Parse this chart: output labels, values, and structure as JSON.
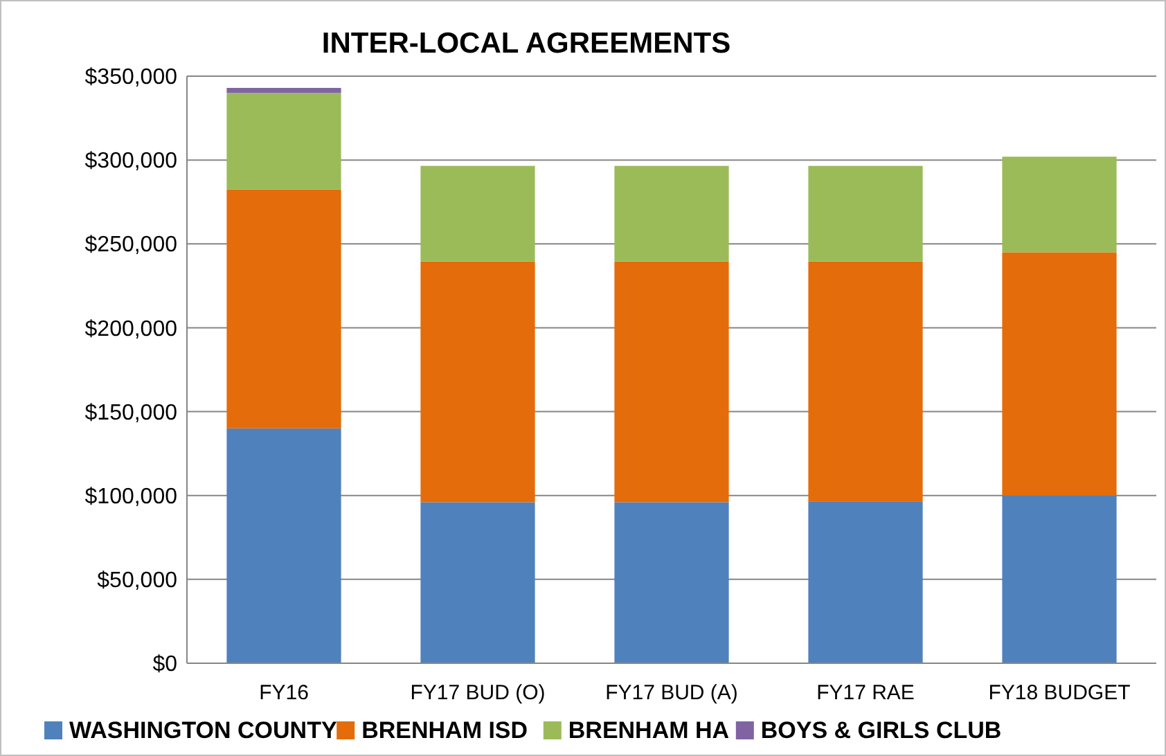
{
  "chart_data": {
    "type": "bar",
    "title": "INTER-LOCAL AGREEMENTS",
    "categories": [
      "FY16",
      "FY17 BUD (O)",
      "FY17 BUD (A)",
      "FY17 RAE",
      "FY18 BUDGET"
    ],
    "stacked": true,
    "series": [
      {
        "name": "WASHINGTON COUNTY",
        "color": "#4f81bd",
        "values": [
          140000,
          96000,
          96000,
          96500,
          100000
        ]
      },
      {
        "name": "BRENHAM ISD",
        "color": "#e46c0a",
        "values": [
          142500,
          143500,
          143500,
          143000,
          145000
        ]
      },
      {
        "name": "BRENHAM HA",
        "color": "#9bbb59",
        "values": [
          57500,
          57000,
          57000,
          57000,
          57000
        ]
      },
      {
        "name": "BOYS & GIRLS CLUB",
        "color": "#8064a2",
        "values": [
          3000,
          0,
          0,
          0,
          0
        ]
      }
    ],
    "ylim": [
      0,
      350000
    ],
    "yticks": [
      {
        "value": 0,
        "label": "$0"
      },
      {
        "value": 50000,
        "label": "$50,000"
      },
      {
        "value": 100000,
        "label": "$100,000"
      },
      {
        "value": 150000,
        "label": "$150,000"
      },
      {
        "value": 200000,
        "label": "$200,000"
      },
      {
        "value": 250000,
        "label": "$250,000"
      },
      {
        "value": 300000,
        "label": "$300,000"
      },
      {
        "value": 350000,
        "label": "$350,000"
      }
    ],
    "grid": "y",
    "legend": "bottom"
  }
}
